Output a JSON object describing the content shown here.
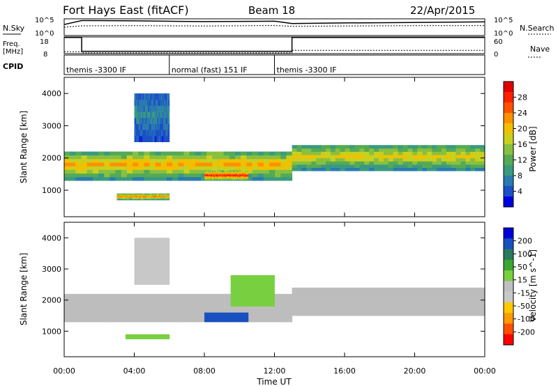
{
  "header": {
    "station": "Fort Hays East (fitACF)",
    "beam": "Beam 18",
    "date": "22/Apr/2015"
  },
  "top_panels": {
    "nsky": {
      "label": "N.Sky",
      "ticks": [
        "10^5",
        "10^0"
      ]
    },
    "nsearch": {
      "label": "N.Search",
      "ticks": [
        "10^5",
        "10^0"
      ]
    },
    "freq": {
      "label_line1": "Freq.",
      "label_line2": "[MHz]",
      "ticks": [
        "18",
        "8"
      ]
    },
    "nave": {
      "label": "Nave",
      "ticks": [
        "60",
        "0"
      ]
    },
    "cpid": {
      "label": "CPID",
      "segments": [
        {
          "text": "themis -3300 IF",
          "start_h": 0.0,
          "end_h": 6.0
        },
        {
          "text": "normal (fast) 151 IF",
          "start_h": 6.0,
          "end_h": 12.0
        },
        {
          "text": "themis -3300 IF",
          "start_h": 12.0,
          "end_h": 24.0
        }
      ]
    }
  },
  "colors": {
    "power_scale": [
      "#0000e0",
      "#1a50c8",
      "#2a7ab0",
      "#3a9a80",
      "#55aa55",
      "#88c040",
      "#c8d020",
      "#f0c000",
      "#ff9000",
      "#ff5000",
      "#ff2000",
      "#e00000"
    ],
    "velocity_scale": [
      "#0000d8",
      "#1850c0",
      "#2a7a60",
      "#3aa830",
      "#78d040",
      "#c0c0c0",
      "#c8c8c8",
      "#ffc800",
      "#ff9a00",
      "#ff5000",
      "#ff0000"
    ],
    "ground_scatter": "#bdbdbd",
    "frame": "#000000"
  },
  "axis": {
    "xlabel": "Time UT",
    "xticks": [
      "00:00",
      "04:00",
      "08:00",
      "12:00",
      "16:00",
      "20:00",
      "00:00"
    ],
    "ylabel": "Slant Range [km]",
    "yticks": [
      "4000",
      "3000",
      "2000",
      "1000"
    ]
  },
  "chart_data": [
    {
      "type": "line",
      "panel": "N.Sky / N.Search",
      "x_unit": "hours UT",
      "x": [
        0,
        1,
        4,
        8,
        12,
        13,
        16,
        20,
        24
      ],
      "series": [
        {
          "name": "N.Sky",
          "values": [
            2000,
            30000,
            25000,
            15000,
            20000,
            4000,
            6000,
            8000,
            12000
          ]
        },
        {
          "name": "N.Search",
          "values": [
            300,
            800,
            900,
            700,
            1000,
            600,
            700,
            900,
            900
          ]
        }
      ],
      "ylim": [
        1,
        100000
      ],
      "yscale": "log"
    },
    {
      "type": "line",
      "panel": "Freq. / Nave",
      "x_unit": "hours UT",
      "x": [
        0,
        1,
        1,
        13,
        13,
        24
      ],
      "series": [
        {
          "name": "Freq.",
          "values": [
            17.7,
            17.7,
            9.4,
            9.4,
            17.7,
            17.7
          ]
        },
        {
          "name": "Nave",
          "values": [
            7,
            7,
            3,
            3,
            12,
            12
          ]
        }
      ],
      "ylim_freq": [
        8,
        18
      ],
      "ylim_nave": [
        0,
        60
      ]
    },
    {
      "type": "heatmap",
      "panel": "Power",
      "colorbar_label": "Power [dB]",
      "colorbar_ticks": [
        "28",
        "24",
        "20",
        "16",
        "12",
        "8",
        "4"
      ],
      "crange": [
        0,
        30
      ],
      "xlim": [
        0,
        24
      ],
      "ylim": [
        180,
        4500
      ],
      "regions": [
        {
          "t0": 0.0,
          "t1": 13.0,
          "r0": 1300,
          "r1": 2200,
          "level": 18
        },
        {
          "t0": 13.0,
          "t1": 24.0,
          "r0": 1600,
          "r1": 2400,
          "level": 16
        },
        {
          "t0": 8.0,
          "t1": 10.5,
          "r0": 1300,
          "r1": 1600,
          "level": 24
        },
        {
          "t0": 3.0,
          "t1": 6.0,
          "r0": 700,
          "r1": 900,
          "level": 20
        },
        {
          "t0": 4.0,
          "t1": 6.0,
          "r0": 2500,
          "r1": 4000,
          "level": 6
        }
      ]
    },
    {
      "type": "heatmap",
      "panel": "Velocity",
      "colorbar_label": "Velocity [m s^-1]",
      "colorbar_ticks": [
        "200",
        "100",
        "50",
        "15",
        "-15",
        "-50",
        "-100",
        "-200"
      ],
      "crange": [
        -250,
        250
      ],
      "xlim": [
        0,
        24
      ],
      "ylim": [
        180,
        4500
      ],
      "regions": [
        {
          "t0": 0.0,
          "t1": 13.0,
          "r0": 1300,
          "r1": 2200,
          "v": 0
        },
        {
          "t0": 13.0,
          "t1": 24.0,
          "r0": 1500,
          "r1": 2400,
          "v": 0
        },
        {
          "t0": 8.0,
          "t1": 10.5,
          "r0": 1300,
          "r1": 1600,
          "v": 200
        },
        {
          "t0": 3.5,
          "t1": 6.0,
          "r0": 750,
          "r1": 900,
          "v": 40
        },
        {
          "t0": 9.5,
          "t1": 12.0,
          "r0": 1800,
          "r1": 2800,
          "v": 40
        },
        {
          "t0": 4.0,
          "t1": 6.0,
          "r0": 2500,
          "r1": 4000,
          "v": -50
        }
      ]
    }
  ]
}
